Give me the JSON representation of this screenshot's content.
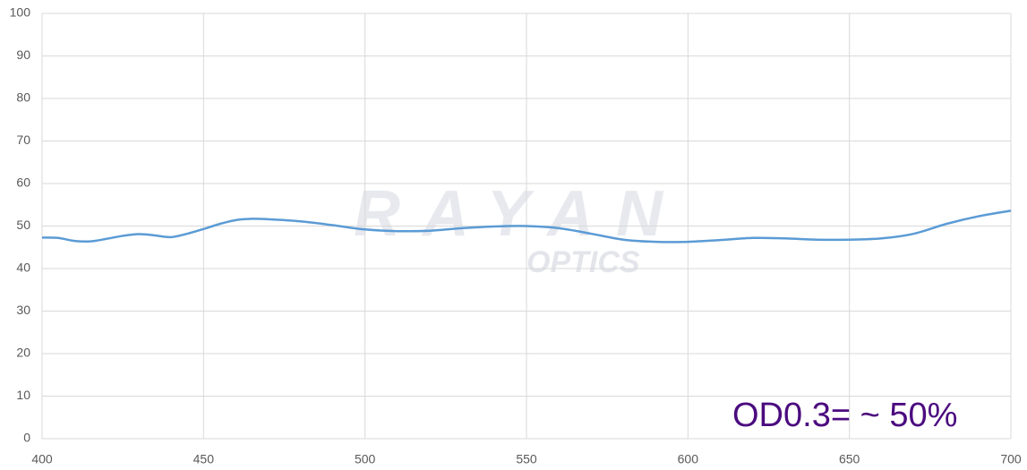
{
  "chart_data": {
    "type": "line",
    "annotation": "OD0.3= ~ 50%",
    "watermark": [
      "RAYAN",
      "OPTICS"
    ],
    "x": [
      400,
      405,
      410,
      415,
      420,
      425,
      430,
      435,
      440,
      445,
      450,
      455,
      460,
      465,
      470,
      480,
      490,
      500,
      510,
      520,
      530,
      540,
      550,
      560,
      570,
      580,
      590,
      600,
      610,
      620,
      630,
      640,
      650,
      660,
      670,
      680,
      690,
      700
    ],
    "series": [
      {
        "color": "#5b9bd5",
        "values": [
          47.3,
          47.2,
          46.5,
          46.4,
          47.0,
          47.7,
          48.1,
          47.8,
          47.4,
          48.2,
          49.3,
          50.5,
          51.4,
          51.7,
          51.6,
          51.1,
          50.2,
          49.2,
          48.8,
          48.9,
          49.5,
          49.9,
          50.0,
          49.5,
          48.2,
          46.8,
          46.3,
          46.3,
          46.7,
          47.2,
          47.1,
          46.8,
          46.8,
          47.1,
          48.2,
          50.5,
          52.3,
          53.6
        ]
      }
    ],
    "xlim": [
      400,
      700
    ],
    "xticks": [
      400,
      450,
      500,
      550,
      600,
      650,
      700
    ],
    "ylim": [
      0,
      100
    ],
    "yticks": [
      0,
      10,
      20,
      30,
      40,
      50,
      60,
      70,
      80,
      90,
      100
    ],
    "grid": true
  }
}
